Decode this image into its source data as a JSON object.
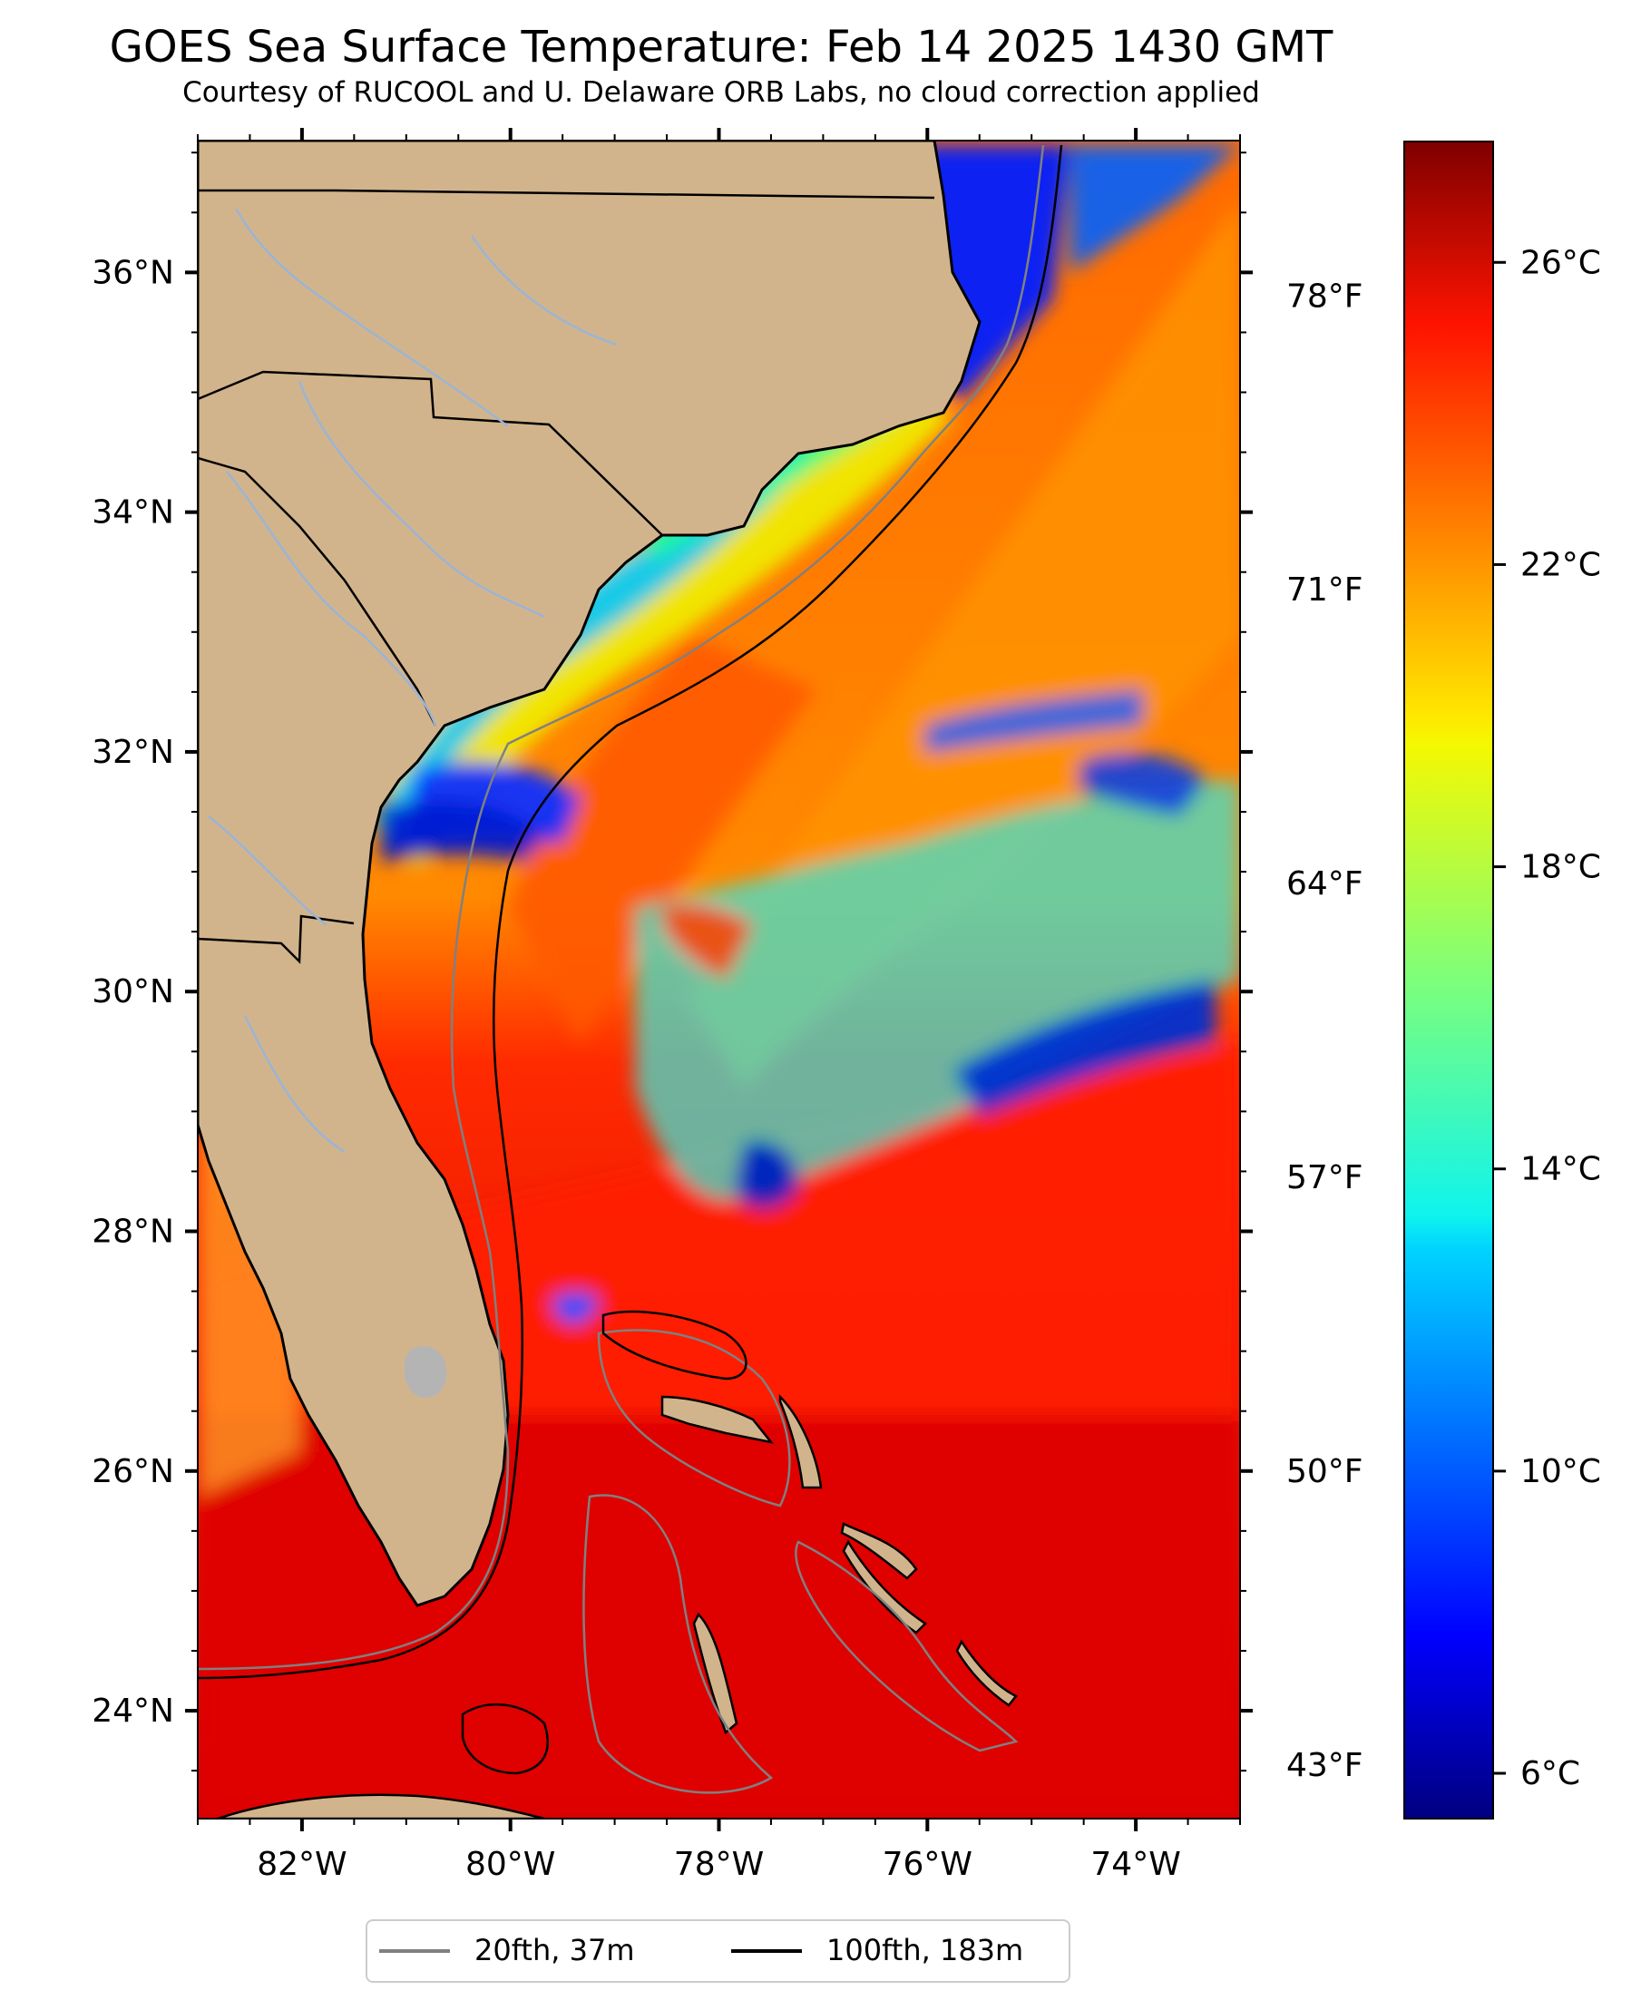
{
  "title": "GOES Sea Surface Temperature: Feb 14 2025 1430 GMT",
  "subtitle": "Courtesy of RUCOOL and U. Delaware ORB Labs, no cloud correction applied",
  "map": {
    "lon_range": [
      -83,
      -73
    ],
    "lat_range": [
      23.1,
      37.1
    ],
    "lat_labels": [
      {
        "lat": 36,
        "label": "36°N"
      },
      {
        "lat": 34,
        "label": "34°N"
      },
      {
        "lat": 32,
        "label": "32°N"
      },
      {
        "lat": 30,
        "label": "30°N"
      },
      {
        "lat": 28,
        "label": "28°N"
      },
      {
        "lat": 26,
        "label": "26°N"
      },
      {
        "lat": 24,
        "label": "24°N"
      }
    ],
    "lon_labels": [
      {
        "lon": -82,
        "label": "82°W"
      },
      {
        "lon": -80,
        "label": "80°W"
      },
      {
        "lon": -78,
        "label": "78°W"
      },
      {
        "lon": -76,
        "label": "76°W"
      },
      {
        "lon": -74,
        "label": "74°W"
      }
    ],
    "fahrenheit_labels": [
      {
        "degF": 78,
        "label": "78°F"
      },
      {
        "degF": 71,
        "label": "71°F"
      },
      {
        "degF": 64,
        "label": "64°F"
      },
      {
        "degF": 57,
        "label": "57°F"
      },
      {
        "degF": 50,
        "label": "50°F"
      },
      {
        "degF": 43,
        "label": "43°F"
      }
    ],
    "colors": {
      "land": "#d2b48c",
      "rivers": "#9bb4d6",
      "lake": "#b4b4b4",
      "isobath_20": "#808080",
      "isobath_100": "#000000"
    }
  },
  "colorbar": {
    "range_c": [
      5.4,
      27.6
    ],
    "tick_labels": [
      {
        "degC": 26,
        "label": "26°C"
      },
      {
        "degC": 22,
        "label": "22°C"
      },
      {
        "degC": 18,
        "label": "18°C"
      },
      {
        "degC": 14,
        "label": "14°C"
      },
      {
        "degC": 10,
        "label": "10°C"
      },
      {
        "degC": 6,
        "label": "6°C"
      }
    ],
    "colormap": "jet"
  },
  "legend": {
    "entries": [
      {
        "label": "20fth, 37m",
        "color": "#808080"
      },
      {
        "label": "100fth, 183m",
        "color": "#000000"
      }
    ]
  }
}
